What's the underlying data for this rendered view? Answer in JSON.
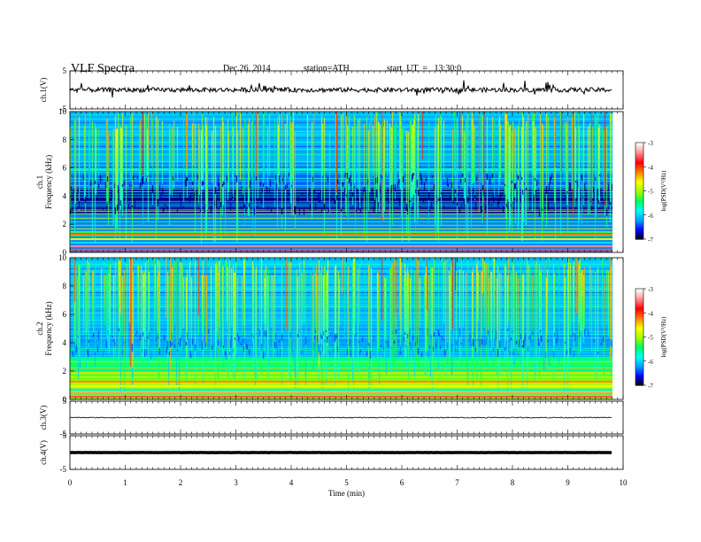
{
  "header": {
    "title": "VLF  Spectra",
    "date": "Dec.26, 2014",
    "station": "station=ATH",
    "start": "start  UT  =   13:30:0"
  },
  "chart_data": [
    {
      "type": "line",
      "panel": "ch1",
      "ylabel": "ch.1(V)",
      "ylim": [
        -5,
        5
      ],
      "yticks": [
        "5",
        "-5"
      ],
      "series": [
        {
          "description": "noisy trace around ~0 V with frequent spikes",
          "approx_level": 0,
          "color": "#000000"
        }
      ]
    },
    {
      "type": "heatmap",
      "panel": "ch1",
      "ylabel": "ch.1\nFrequency  (kHz)",
      "ylim": [
        0,
        10
      ],
      "yticks": [
        "0",
        "2",
        "4",
        "6",
        "8",
        "10"
      ],
      "colorbar": {
        "label": "log(PSD(V²/Hz)",
        "range": [
          -7,
          -3
        ],
        "ticks": [
          "-3",
          "-4",
          "-5",
          "-6",
          "-7"
        ]
      }
    },
    {
      "type": "heatmap",
      "panel": "ch2",
      "ylabel": "ch.2\nFrequency  (kHz)",
      "ylim": [
        0,
        10
      ],
      "yticks": [
        "0",
        "2",
        "4",
        "6",
        "8",
        "10"
      ],
      "colorbar": {
        "label": "log(PSD(V²/Hz)",
        "range": [
          -7,
          -3
        ],
        "ticks": [
          "-3",
          "-4",
          "-5",
          "-6",
          "-7"
        ]
      }
    },
    {
      "type": "line",
      "panel": "ch3",
      "ylabel": "ch.3(V)",
      "ylim": [
        -5,
        5
      ],
      "yticks": [
        "5",
        "-5"
      ],
      "series": [
        {
          "description": "near-flat trace",
          "approx_level": 0,
          "color": "#000000"
        }
      ]
    },
    {
      "type": "line",
      "panel": "ch4",
      "ylabel": "ch.4(V)",
      "ylim": [
        -5,
        5
      ],
      "yticks": [
        "5",
        "-5"
      ],
      "series": [
        {
          "description": "flat thick trace",
          "approx_level": 0,
          "color": "#000000"
        }
      ]
    }
  ],
  "xaxis": {
    "label": "Time  (min)",
    "xlim": [
      0,
      10
    ],
    "ticks": [
      "0",
      "1",
      "2",
      "3",
      "4",
      "5",
      "6",
      "7",
      "8",
      "9",
      "10"
    ],
    "data_end": 9.8
  },
  "colormap": [
    "#000000",
    "#0000ff",
    "#00a0ff",
    "#00ffff",
    "#00ff60",
    "#a0ff00",
    "#ffff00",
    "#ff8000",
    "#ff0000",
    "#ff9090",
    "#ffffff"
  ]
}
